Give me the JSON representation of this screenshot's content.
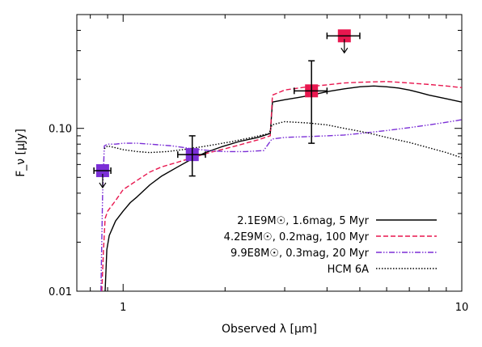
{
  "chart_data": {
    "type": "line",
    "title": "",
    "xlabel": "Observed λ [μm]",
    "ylabel": "F_ν [μJy]",
    "xscale": "log",
    "yscale": "log",
    "xlim": [
      0.73,
      10
    ],
    "ylim": [
      0.01,
      0.5
    ],
    "grid": false,
    "legend_placement": "bottom-right",
    "x_tick_labels": [
      {
        "value": 1,
        "label": "1"
      },
      {
        "value": 10,
        "label": "10"
      }
    ],
    "y_tick_labels": [
      {
        "value": 0.01,
        "label": "0.01"
      },
      {
        "value": 0.1,
        "label": "0.10"
      }
    ],
    "series": [
      {
        "name": "2.1E9M☉, 1.6mag, 5 Myr",
        "color": "#000000",
        "style": "solid",
        "x": [
          0.885,
          0.895,
          0.91,
          0.95,
          1.0,
          1.05,
          1.1,
          1.2,
          1.3,
          1.45,
          1.6,
          1.75,
          1.95,
          2.2,
          2.5,
          2.72,
          2.76,
          3.0,
          3.3,
          3.6,
          4.0,
          4.5,
          5.0,
          5.5,
          6.0,
          6.5,
          7.0,
          7.5,
          8.0,
          9.0,
          10.0
        ],
        "y": [
          0.01,
          0.018,
          0.022,
          0.027,
          0.031,
          0.035,
          0.038,
          0.045,
          0.051,
          0.058,
          0.065,
          0.071,
          0.077,
          0.083,
          0.088,
          0.093,
          0.145,
          0.15,
          0.155,
          0.16,
          0.168,
          0.175,
          0.18,
          0.182,
          0.18,
          0.177,
          0.172,
          0.166,
          0.16,
          0.152,
          0.145
        ]
      },
      {
        "name": "4.2E9M☉, 0.2mag, 100 Myr",
        "color": "#e8174f",
        "style": "dashed",
        "x": [
          0.865,
          0.875,
          0.885,
          0.9,
          0.95,
          1.0,
          1.1,
          1.2,
          1.3,
          1.45,
          1.6,
          1.8,
          2.0,
          2.2,
          2.5,
          2.72,
          2.76,
          3.0,
          3.5,
          4.0,
          4.5,
          5.0,
          5.5,
          6.0,
          6.5,
          7.0,
          8.0,
          9.0,
          10.0
        ],
        "y": [
          0.01,
          0.018,
          0.028,
          0.031,
          0.036,
          0.042,
          0.048,
          0.054,
          0.058,
          0.062,
          0.066,
          0.071,
          0.075,
          0.079,
          0.085,
          0.09,
          0.16,
          0.172,
          0.18,
          0.185,
          0.19,
          0.192,
          0.193,
          0.194,
          0.192,
          0.19,
          0.186,
          0.182,
          0.178
        ]
      },
      {
        "name": "9.9E8M☉, 0.3mag, 20 Myr",
        "color": "#7b2fd6",
        "style": "dash-dot",
        "x": [
          0.86,
          0.87,
          0.88,
          0.9,
          0.95,
          1.0,
          1.1,
          1.2,
          1.4,
          1.6,
          1.8,
          2.0,
          2.3,
          2.6,
          2.75,
          3.0,
          3.5,
          4.0,
          4.5,
          5.0,
          6.0,
          7.0,
          8.0,
          9.0,
          10.0
        ],
        "y": [
          0.01,
          0.04,
          0.078,
          0.08,
          0.08,
          0.081,
          0.081,
          0.08,
          0.078,
          0.075,
          0.073,
          0.072,
          0.072,
          0.073,
          0.086,
          0.088,
          0.089,
          0.09,
          0.091,
          0.093,
          0.097,
          0.101,
          0.105,
          0.109,
          0.113
        ]
      },
      {
        "name": "HCM 6A",
        "color": "#000000",
        "style": "dotted",
        "x": [
          0.88,
          0.9,
          0.95,
          1.0,
          1.1,
          1.2,
          1.35,
          1.5,
          1.7,
          1.9,
          2.1,
          2.4,
          2.7,
          2.75,
          3.0,
          3.5,
          4.0,
          4.5,
          5.0,
          5.5,
          6.0,
          7.0,
          8.0,
          9.0,
          10.0
        ],
        "y": [
          0.075,
          0.078,
          0.076,
          0.074,
          0.072,
          0.071,
          0.072,
          0.074,
          0.077,
          0.08,
          0.083,
          0.088,
          0.093,
          0.105,
          0.11,
          0.108,
          0.105,
          0.1,
          0.096,
          0.092,
          0.088,
          0.082,
          0.076,
          0.071,
          0.066
        ]
      }
    ],
    "data_points": [
      {
        "x": 0.87,
        "y": 0.055,
        "xerr": [
          0.82,
          0.92
        ],
        "color": "#7b2fd6",
        "upper_limit": true
      },
      {
        "x": 1.6,
        "y": 0.069,
        "xerr": [
          1.45,
          1.75
        ],
        "yerr": [
          0.051,
          0.09
        ],
        "color": "#7b2fd6",
        "upper_limit": false
      },
      {
        "x": 3.6,
        "y": 0.17,
        "xerr": [
          3.2,
          4.0
        ],
        "yerr": [
          0.081,
          0.26
        ],
        "color": "#e8174f",
        "upper_limit": false
      },
      {
        "x": 4.5,
        "y": 0.37,
        "xerr": [
          4.0,
          5.0
        ],
        "color": "#e8174f",
        "upper_limit": true
      }
    ]
  }
}
